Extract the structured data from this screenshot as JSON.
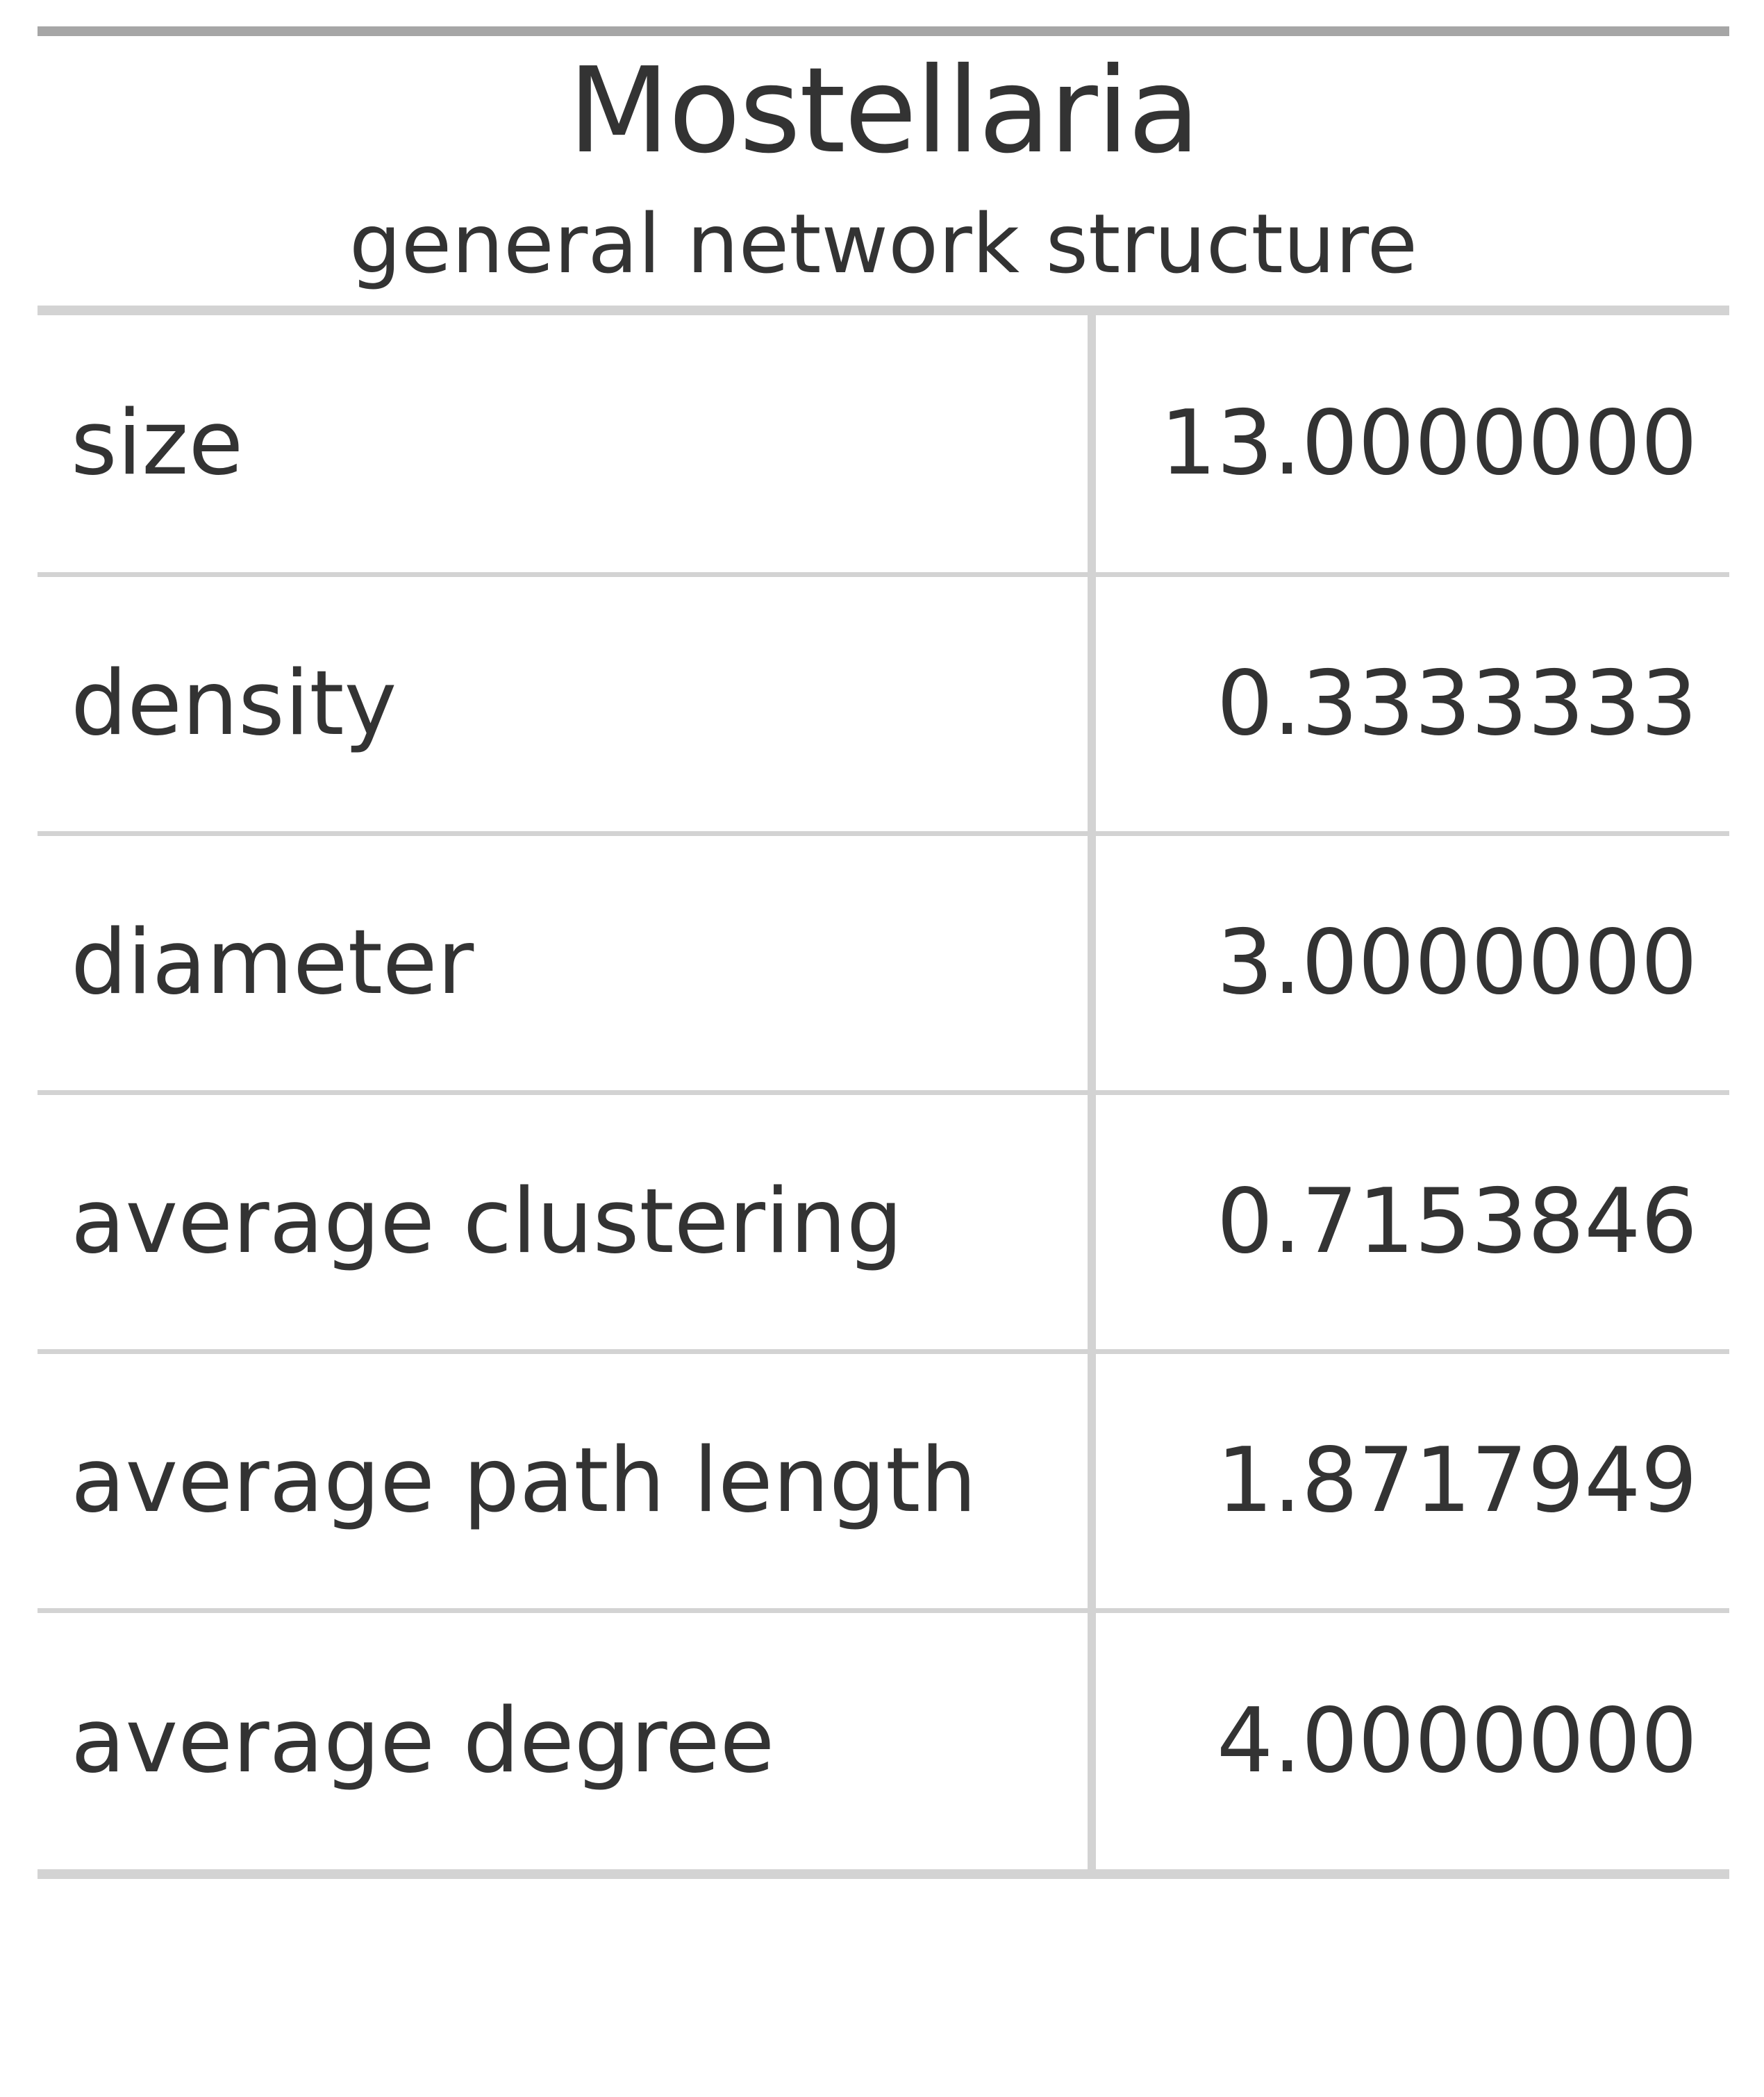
{
  "table": {
    "title": "Mostellaria",
    "subtitle": "general network structure",
    "rows": [
      {
        "label": "size",
        "value": "13.0000000"
      },
      {
        "label": "density",
        "value": "0.3333333"
      },
      {
        "label": "diameter",
        "value": "3.0000000"
      },
      {
        "label": "average clustering",
        "value": "0.7153846"
      },
      {
        "label": "average path length",
        "value": "1.8717949"
      },
      {
        "label": "average degree",
        "value": "4.0000000"
      }
    ]
  }
}
